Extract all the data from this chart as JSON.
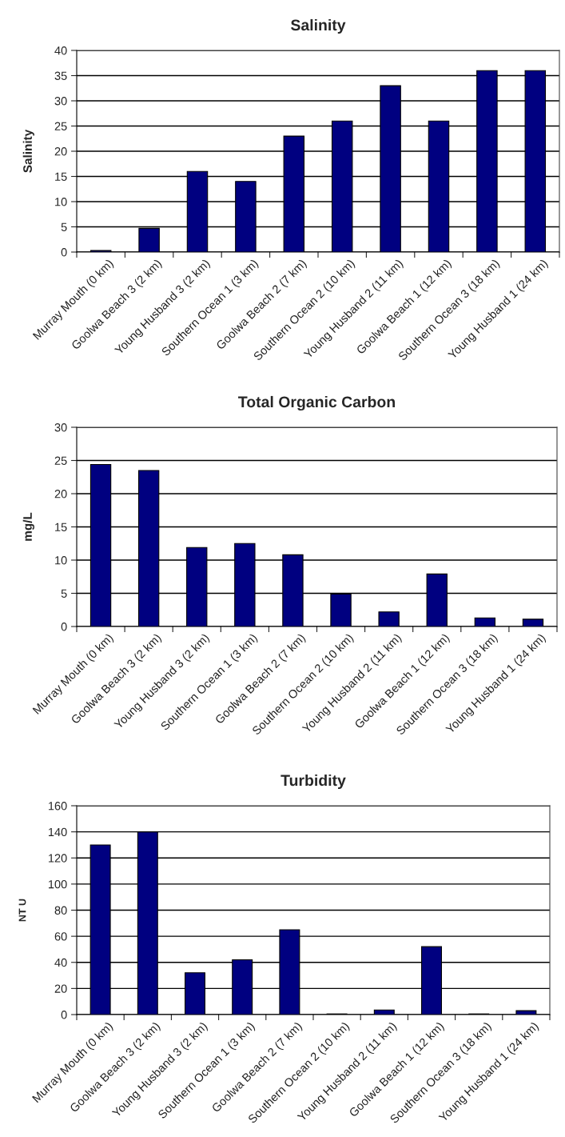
{
  "chart_data": [
    {
      "type": "bar",
      "title": "Salinity",
      "ylabel": "Salinity",
      "categories": [
        "Murray Mouth (0 km)",
        "Goolwa Beach 3 (2 km)",
        "Young Husband 3 (2 km)",
        "Southern Ocean 1 (3 km)",
        "Goolwa Beach 2 (7 km)",
        "Southern Ocean 2 (10 km)",
        "Young Husband 2 (11 km)",
        "Goolwa Beach 1 (12 km)",
        "Southern Ocean 3 (18 km)",
        "Young Husband 1 (24 km)"
      ],
      "values": [
        0.3,
        4.7,
        16,
        14,
        23,
        26,
        33,
        26,
        36,
        36
      ],
      "color": "#000080",
      "ylim": [
        0,
        40
      ],
      "yticks": [
        0,
        5,
        10,
        15,
        20,
        25,
        30,
        35,
        40
      ],
      "grid": "y"
    },
    {
      "type": "bar",
      "title": "Total Organic Carbon",
      "ylabel": "mg/L",
      "categories": [
        "Murray Mouth (0 km)",
        "Goolwa Beach 3 (2 km)",
        "Young Husband 3 (2 km)",
        "Southern Ocean 1 (3 km)",
        "Goolwa Beach 2 (7 km)",
        "Southern Ocean 2 (10 km)",
        "Young Husband 2 (11 km)",
        "Goolwa Beach 1 (12 km)",
        "Southern Ocean 3 (18 km)",
        "Young Husband 1 (24 km)"
      ],
      "values": [
        24.4,
        23.5,
        11.9,
        12.5,
        10.8,
        4.9,
        2.2,
        7.9,
        1.3,
        1.1
      ],
      "color": "#000080",
      "ylim": [
        0,
        30
      ],
      "yticks": [
        0,
        5,
        10,
        15,
        20,
        25,
        30
      ],
      "grid": "y"
    },
    {
      "type": "bar",
      "title": "Turbidity",
      "ylabel": "NT U",
      "categories": [
        "Murray Mouth (0 km)",
        "Goolwa Beach 3 (2 km)",
        "Young Husband 3 (2 km)",
        "Southern Ocean 1 (3 km)",
        "Goolwa Beach 2 (7 km)",
        "Southern Ocean 2 (10 km)",
        "Young Husband 2 (11 km)",
        "Goolwa Beach 1 (12 km)",
        "Southern Ocean 3 (18 km)",
        "Young Husband 1 (24 km)"
      ],
      "values": [
        130,
        140,
        32,
        42,
        65,
        0.5,
        3.5,
        52,
        0.5,
        3
      ],
      "color": "#000080",
      "ylim": [
        0,
        160
      ],
      "yticks": [
        0,
        20,
        40,
        60,
        80,
        100,
        120,
        140,
        160
      ],
      "grid": "y"
    }
  ]
}
